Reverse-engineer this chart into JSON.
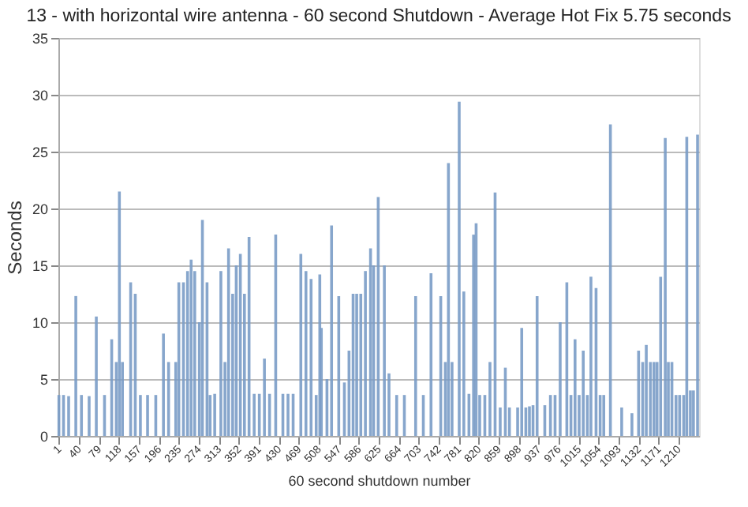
{
  "chart_data": {
    "type": "bar",
    "title": "13 - with horizontal wire antenna - 60 second Shutdown - Average Hot Fix 5.75 seconds",
    "xlabel": "60 second shutdown number",
    "ylabel": "Seconds",
    "color": "#7a9cc6",
    "x": [
      1,
      10,
      20,
      34,
      45,
      60,
      74,
      90,
      104,
      113,
      119,
      125,
      141,
      150,
      160,
      174,
      190,
      205,
      215,
      229,
      235,
      244,
      252,
      259,
      266,
      275,
      281,
      290,
      296,
      305,
      317,
      325,
      332,
      340,
      347,
      355,
      363,
      372,
      382,
      392,
      402,
      412,
      424,
      438,
      448,
      458,
      473,
      483,
      493,
      503,
      510,
      513,
      524,
      533,
      547,
      558,
      567,
      575,
      582,
      590,
      599,
      609,
      615,
      624,
      636,
      645,
      660,
      675,
      697,
      712,
      727,
      746,
      755,
      761,
      768,
      782,
      791,
      801,
      810,
      815,
      822,
      832,
      842,
      852,
      862,
      872,
      880,
      889,
      896,
      904,
      912,
      919,
      926,
      934,
      949,
      960,
      969,
      979,
      992,
      1000,
      1008,
      1016,
      1024,
      1032,
      1039,
      1049,
      1057,
      1064,
      1077,
      1089,
      1099,
      1109,
      1119,
      1125,
      1132,
      1140,
      1147,
      1155,
      1162,
      1168,
      1175,
      1184,
      1190,
      1197,
      1205,
      1212,
      1220,
      1226,
      1233,
      1239,
      1247
    ],
    "values": [
      3.6,
      3.6,
      3.5,
      12.3,
      3.6,
      3.5,
      10.5,
      3.6,
      8.5,
      6.5,
      21.5,
      6.5,
      13.5,
      12.5,
      3.6,
      3.6,
      3.6,
      9,
      6.5,
      6.5,
      13.5,
      13.5,
      14.5,
      15.5,
      14.5,
      10,
      19,
      13.5,
      3.6,
      3.7,
      14.5,
      6.5,
      16.5,
      12.5,
      15,
      16,
      12.5,
      17.5,
      3.7,
      3.7,
      6.8,
      3.7,
      17.7,
      3.7,
      3.7,
      3.7,
      16,
      14.5,
      13.8,
      3.6,
      14.2,
      9.5,
      5,
      18.5,
      12.3,
      4.7,
      7.5,
      12.5,
      12.5,
      12.5,
      14.5,
      16.5,
      15,
      21,
      15,
      5.5,
      3.6,
      3.6,
      12.3,
      3.6,
      14.3,
      12.3,
      6.5,
      24,
      6.5,
      29.4,
      12.7,
      3.7,
      17.7,
      18.7,
      3.6,
      3.6,
      6.5,
      21.4,
      2.5,
      6,
      2.5,
      0,
      2.5,
      9.5,
      2.5,
      2.6,
      2.7,
      12.3,
      2.7,
      3.6,
      3.6,
      10,
      13.5,
      3.6,
      8.5,
      3.6,
      7.5,
      3.6,
      14,
      13,
      3.6,
      3.6,
      27.4,
      0,
      2.5,
      0,
      2,
      0,
      7.5,
      6.5,
      8,
      6.5,
      6.5,
      6.5,
      14,
      26.2,
      6.5,
      6.5,
      3.6,
      3.6,
      3.6,
      26.3,
      4,
      4,
      26.5
    ],
    "xlim": [
      0,
      1250
    ],
    "xticks": [
      1,
      40,
      79,
      118,
      157,
      196,
      235,
      274,
      313,
      352,
      391,
      430,
      469,
      508,
      547,
      586,
      625,
      664,
      703,
      742,
      781,
      820,
      859,
      898,
      937,
      976,
      1015,
      1054,
      1093,
      1132,
      1171,
      1210
    ],
    "ylim": [
      0,
      35
    ],
    "yticks": [
      0,
      5,
      10,
      15,
      20,
      25,
      30,
      35
    ],
    "grid": "y"
  }
}
